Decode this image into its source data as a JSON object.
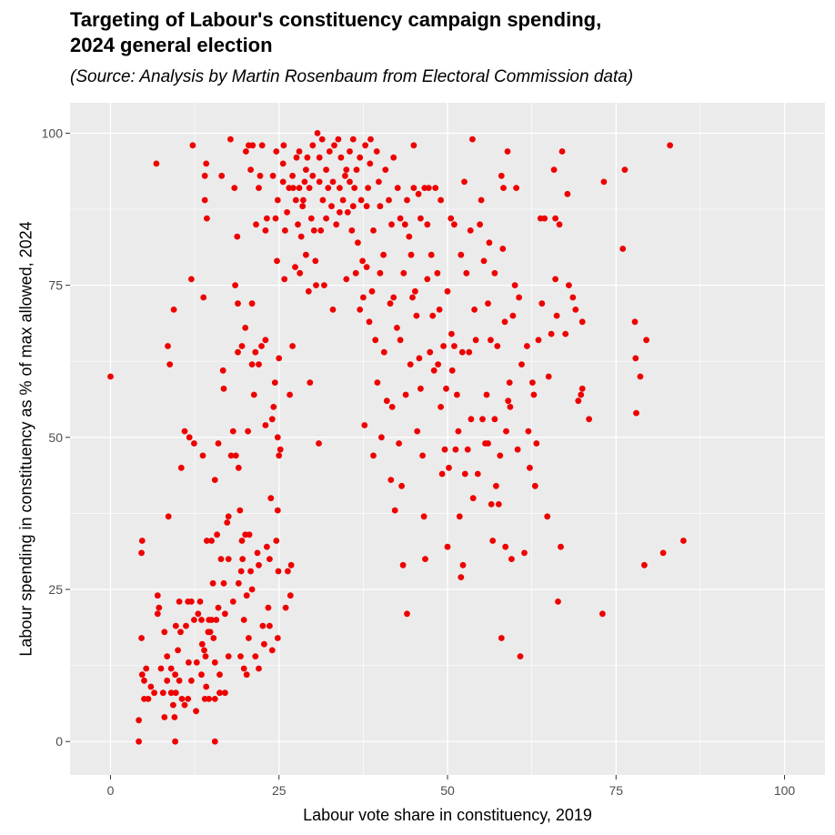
{
  "chart_data": {
    "type": "scatter",
    "title_lines": [
      "Targeting of Labour's constituency campaign spending,",
      "2024 general election"
    ],
    "subtitle": "(Source: Analysis by Martin Rosenbaum from Electoral Commission data)",
    "xlabel": "Labour vote share in constituency, 2019",
    "ylabel": "Labour spending in constituency as % of max allowed, 2024",
    "xlim": [
      -6,
      106
    ],
    "ylim": [
      -5.5,
      105
    ],
    "x_ticks": [
      0,
      25,
      50,
      75,
      100
    ],
    "y_ticks": [
      0,
      25,
      50,
      75,
      100
    ],
    "grid": true,
    "point_color": "#ee0000",
    "panel_color": "#ebebeb",
    "points": [
      [
        0,
        60
      ],
      [
        4.2,
        0
      ],
      [
        4.2,
        3.5
      ],
      [
        4.6,
        17
      ],
      [
        4.6,
        31
      ],
      [
        4.7,
        33
      ],
      [
        4.7,
        11
      ],
      [
        5,
        7
      ],
      [
        5,
        10
      ],
      [
        5.3,
        12
      ],
      [
        5.6,
        7
      ],
      [
        6,
        9
      ],
      [
        6.5,
        8
      ],
      [
        6.8,
        95
      ],
      [
        7,
        24
      ],
      [
        7,
        21
      ],
      [
        7.2,
        22
      ],
      [
        7.5,
        12
      ],
      [
        7.8,
        8
      ],
      [
        8,
        18
      ],
      [
        8,
        4
      ],
      [
        8.4,
        10
      ],
      [
        8.4,
        14
      ],
      [
        8.5,
        65
      ],
      [
        8.6,
        37
      ],
      [
        8.8,
        62
      ],
      [
        9,
        12
      ],
      [
        9,
        8
      ],
      [
        9.3,
        6
      ],
      [
        9.4,
        71
      ],
      [
        9.5,
        4
      ],
      [
        9.6,
        0
      ],
      [
        9.6,
        11
      ],
      [
        9.7,
        19
      ],
      [
        9.7,
        8
      ],
      [
        10,
        15
      ],
      [
        10.2,
        23
      ],
      [
        10.2,
        10
      ],
      [
        10.4,
        18
      ],
      [
        10.5,
        45
      ],
      [
        10.6,
        7
      ],
      [
        11,
        51
      ],
      [
        11,
        6
      ],
      [
        11.2,
        19
      ],
      [
        11.5,
        23
      ],
      [
        11.5,
        7
      ],
      [
        11.6,
        13
      ],
      [
        11.7,
        50
      ],
      [
        12,
        76
      ],
      [
        12,
        23
      ],
      [
        12,
        10
      ],
      [
        12.2,
        98
      ],
      [
        12.4,
        49
      ],
      [
        12.4,
        20
      ],
      [
        12.7,
        5
      ],
      [
        12.8,
        13
      ],
      [
        13,
        21
      ],
      [
        13.3,
        23
      ],
      [
        13.5,
        11
      ],
      [
        13.5,
        20
      ],
      [
        13.6,
        16
      ],
      [
        13.7,
        47
      ],
      [
        13.8,
        73
      ],
      [
        13.9,
        15
      ],
      [
        14,
        93
      ],
      [
        14,
        89
      ],
      [
        14,
        7
      ],
      [
        14.1,
        14
      ],
      [
        14.2,
        95
      ],
      [
        14.2,
        9
      ],
      [
        14.3,
        86
      ],
      [
        14.3,
        33
      ],
      [
        14.5,
        18
      ],
      [
        14.6,
        20
      ],
      [
        14.6,
        7
      ],
      [
        14.8,
        18
      ],
      [
        15,
        20
      ],
      [
        15,
        33
      ],
      [
        15.2,
        26
      ],
      [
        15.3,
        17
      ],
      [
        15.5,
        0
      ],
      [
        15.5,
        43
      ],
      [
        15.5,
        13
      ],
      [
        15.5,
        7
      ],
      [
        15.7,
        20
      ],
      [
        15.8,
        34
      ],
      [
        16,
        49
      ],
      [
        16,
        22
      ],
      [
        16.2,
        11
      ],
      [
        16.2,
        8
      ],
      [
        16.4,
        30
      ],
      [
        16.5,
        93
      ],
      [
        16.7,
        61
      ],
      [
        16.8,
        58
      ],
      [
        16.8,
        26
      ],
      [
        17,
        8
      ],
      [
        17,
        21
      ],
      [
        17.3,
        36
      ],
      [
        17.5,
        37
      ],
      [
        17.5,
        30
      ],
      [
        17.5,
        14
      ],
      [
        17.8,
        99
      ],
      [
        17.9,
        47
      ],
      [
        18.2,
        23
      ],
      [
        18.2,
        51
      ],
      [
        18.4,
        91
      ],
      [
        18.5,
        75
      ],
      [
        18.6,
        47
      ],
      [
        18.8,
        83
      ],
      [
        18.9,
        64
      ],
      [
        18.9,
        72
      ],
      [
        19,
        26
      ],
      [
        19,
        45
      ],
      [
        19.2,
        38
      ],
      [
        19.3,
        14
      ],
      [
        19.4,
        28
      ],
      [
        19.5,
        33
      ],
      [
        19.5,
        65
      ],
      [
        19.6,
        30
      ],
      [
        19.8,
        20
      ],
      [
        19.8,
        12
      ],
      [
        20,
        34
      ],
      [
        20,
        68
      ],
      [
        20.1,
        97
      ],
      [
        20.2,
        24
      ],
      [
        20.2,
        11
      ],
      [
        20.4,
        51
      ],
      [
        20.5,
        98
      ],
      [
        20.5,
        17
      ],
      [
        20.6,
        34
      ],
      [
        20.8,
        94
      ],
      [
        20.8,
        28
      ],
      [
        21,
        72
      ],
      [
        21,
        62
      ],
      [
        21,
        25
      ],
      [
        21.1,
        98
      ],
      [
        21.3,
        57
      ],
      [
        21.5,
        64
      ],
      [
        21.5,
        14
      ],
      [
        21.6,
        85
      ],
      [
        21.8,
        31
      ],
      [
        22,
        62
      ],
      [
        22,
        91
      ],
      [
        22,
        12
      ],
      [
        22,
        29
      ],
      [
        22.2,
        93
      ],
      [
        22.4,
        65
      ],
      [
        22.5,
        98
      ],
      [
        22.6,
        19
      ],
      [
        22.8,
        16
      ],
      [
        23,
        66
      ],
      [
        23,
        84
      ],
      [
        23,
        52
      ],
      [
        23.2,
        32
      ],
      [
        23.2,
        86
      ],
      [
        23.4,
        22
      ],
      [
        23.6,
        30
      ],
      [
        23.6,
        19
      ],
      [
        23.8,
        40
      ],
      [
        24,
        53
      ],
      [
        24,
        15
      ],
      [
        24.1,
        93
      ],
      [
        24.2,
        55
      ],
      [
        24.4,
        59
      ],
      [
        24.5,
        86
      ],
      [
        24.6,
        33
      ],
      [
        24.6,
        97
      ],
      [
        24.7,
        79
      ],
      [
        24.8,
        89
      ],
      [
        24.8,
        50
      ],
      [
        24.8,
        38
      ],
      [
        24.8,
        17
      ],
      [
        24.9,
        28
      ],
      [
        25,
        47
      ],
      [
        25,
        63
      ],
      [
        25.2,
        48
      ],
      [
        25.6,
        95
      ],
      [
        25.6,
        92
      ],
      [
        25.7,
        98
      ],
      [
        25.8,
        76
      ],
      [
        25.9,
        84
      ],
      [
        26,
        22
      ],
      [
        26.2,
        87
      ],
      [
        26.3,
        28
      ],
      [
        26.5,
        91
      ],
      [
        26.6,
        57
      ],
      [
        26.7,
        24
      ],
      [
        26.8,
        29
      ],
      [
        27,
        65
      ],
      [
        27,
        93
      ],
      [
        27.1,
        91
      ],
      [
        27.4,
        78
      ],
      [
        27.5,
        89
      ],
      [
        27.6,
        96
      ],
      [
        27.8,
        85
      ],
      [
        28,
        91
      ],
      [
        28,
        97
      ],
      [
        28.1,
        77
      ],
      [
        28.3,
        83
      ],
      [
        28.5,
        88
      ],
      [
        28.6,
        89
      ],
      [
        28.8,
        92
      ],
      [
        29,
        94
      ],
      [
        29,
        80
      ],
      [
        29.2,
        96
      ],
      [
        29.4,
        74
      ],
      [
        29.5,
        91
      ],
      [
        29.6,
        59
      ],
      [
        29.8,
        86
      ],
      [
        30,
        93
      ],
      [
        30,
        98
      ],
      [
        30.2,
        84
      ],
      [
        30.4,
        79
      ],
      [
        30.5,
        75
      ],
      [
        30.7,
        100
      ],
      [
        30.9,
        49
      ],
      [
        31,
        92
      ],
      [
        31,
        96
      ],
      [
        31.2,
        84
      ],
      [
        31.4,
        99
      ],
      [
        31.5,
        89
      ],
      [
        31.7,
        75
      ],
      [
        32,
        94
      ],
      [
        32,
        86
      ],
      [
        32.3,
        91
      ],
      [
        32.5,
        97
      ],
      [
        32.8,
        88
      ],
      [
        33,
        92
      ],
      [
        33,
        71
      ],
      [
        33.2,
        98
      ],
      [
        33.5,
        85
      ],
      [
        33.8,
        99
      ],
      [
        34,
        91
      ],
      [
        34,
        87
      ],
      [
        34.2,
        96
      ],
      [
        34.5,
        89
      ],
      [
        34.8,
        93
      ],
      [
        35,
        76
      ],
      [
        35,
        94
      ],
      [
        35.2,
        87
      ],
      [
        35.5,
        92
      ],
      [
        35.5,
        97
      ],
      [
        35.8,
        84
      ],
      [
        36,
        88
      ],
      [
        36,
        99
      ],
      [
        36.2,
        91
      ],
      [
        36.4,
        77
      ],
      [
        36.5,
        94
      ],
      [
        36.7,
        82
      ],
      [
        37,
        96
      ],
      [
        37,
        71
      ],
      [
        37.2,
        89
      ],
      [
        37.4,
        79
      ],
      [
        37.5,
        73
      ],
      [
        37.7,
        52
      ],
      [
        37.8,
        98
      ],
      [
        38,
        88
      ],
      [
        38,
        78
      ],
      [
        38.2,
        91
      ],
      [
        38.4,
        69
      ],
      [
        38.5,
        95
      ],
      [
        38.6,
        99
      ],
      [
        38.8,
        74
      ],
      [
        39,
        84
      ],
      [
        39,
        47
      ],
      [
        39.3,
        66
      ],
      [
        39.5,
        97
      ],
      [
        39.6,
        59
      ],
      [
        39.8,
        92
      ],
      [
        40,
        88
      ],
      [
        40,
        77
      ],
      [
        40.2,
        50
      ],
      [
        40.5,
        80
      ],
      [
        40.6,
        64
      ],
      [
        40.8,
        94
      ],
      [
        41,
        56
      ],
      [
        41.3,
        89
      ],
      [
        41.5,
        72
      ],
      [
        41.6,
        43
      ],
      [
        41.7,
        85
      ],
      [
        41.8,
        55
      ],
      [
        42,
        96
      ],
      [
        42,
        73
      ],
      [
        42.2,
        38
      ],
      [
        42.5,
        68
      ],
      [
        42.6,
        91
      ],
      [
        42.8,
        49
      ],
      [
        43,
        86
      ],
      [
        43,
        66
      ],
      [
        43.2,
        42
      ],
      [
        43.4,
        29
      ],
      [
        43.5,
        77
      ],
      [
        43.7,
        85
      ],
      [
        43.8,
        57
      ],
      [
        44,
        89
      ],
      [
        44,
        21
      ],
      [
        44.3,
        83
      ],
      [
        44.5,
        62
      ],
      [
        44.6,
        80
      ],
      [
        44.8,
        73
      ],
      [
        45,
        91
      ],
      [
        45,
        98
      ],
      [
        45.2,
        74
      ],
      [
        45.4,
        70
      ],
      [
        45.5,
        51
      ],
      [
        45.7,
        90
      ],
      [
        45.8,
        63
      ],
      [
        46,
        86
      ],
      [
        46,
        58
      ],
      [
        46.3,
        47
      ],
      [
        46.5,
        37
      ],
      [
        46.6,
        91
      ],
      [
        46.7,
        30
      ],
      [
        47,
        76
      ],
      [
        47,
        85
      ],
      [
        47.2,
        91
      ],
      [
        47.4,
        64
      ],
      [
        47.6,
        80
      ],
      [
        47.8,
        70
      ],
      [
        48,
        61
      ],
      [
        48.2,
        91
      ],
      [
        48.5,
        77
      ],
      [
        48.6,
        62
      ],
      [
        48.8,
        71
      ],
      [
        49,
        55
      ],
      [
        49,
        89
      ],
      [
        49.2,
        44
      ],
      [
        49.4,
        65
      ],
      [
        49.6,
        48
      ],
      [
        49.8,
        58
      ],
      [
        50,
        32
      ],
      [
        50,
        74
      ],
      [
        50.2,
        45
      ],
      [
        50.5,
        86
      ],
      [
        50.6,
        67
      ],
      [
        50.7,
        61
      ],
      [
        51,
        85
      ],
      [
        51,
        65
      ],
      [
        51.2,
        48
      ],
      [
        51.4,
        57
      ],
      [
        51.6,
        51
      ],
      [
        51.8,
        37
      ],
      [
        52,
        27
      ],
      [
        52,
        80
      ],
      [
        52.2,
        64
      ],
      [
        52.3,
        29
      ],
      [
        52.5,
        92
      ],
      [
        52.6,
        44
      ],
      [
        52.8,
        77
      ],
      [
        53,
        48
      ],
      [
        53.2,
        64
      ],
      [
        53.4,
        84
      ],
      [
        53.5,
        53
      ],
      [
        53.7,
        99
      ],
      [
        53.8,
        40
      ],
      [
        54,
        71
      ],
      [
        54.2,
        66
      ],
      [
        54.5,
        44
      ],
      [
        54.8,
        85
      ],
      [
        55,
        89
      ],
      [
        55.2,
        53
      ],
      [
        55.4,
        79
      ],
      [
        55.6,
        49
      ],
      [
        55.8,
        57
      ],
      [
        56,
        49
      ],
      [
        56,
        72
      ],
      [
        56.2,
        82
      ],
      [
        56.4,
        66
      ],
      [
        56.5,
        39
      ],
      [
        56.7,
        33
      ],
      [
        57,
        53
      ],
      [
        57,
        77
      ],
      [
        57.2,
        42
      ],
      [
        57.4,
        65
      ],
      [
        57.6,
        39
      ],
      [
        57.8,
        47
      ],
      [
        58,
        93
      ],
      [
        58,
        17
      ],
      [
        58.2,
        81
      ],
      [
        58.3,
        91
      ],
      [
        58.5,
        69
      ],
      [
        58.6,
        32
      ],
      [
        58.7,
        51
      ],
      [
        58.9,
        97
      ],
      [
        59,
        56
      ],
      [
        59.2,
        59
      ],
      [
        59.3,
        55
      ],
      [
        59.5,
        30
      ],
      [
        59.7,
        70
      ],
      [
        60,
        75
      ],
      [
        60.2,
        91
      ],
      [
        60.4,
        48
      ],
      [
        60.6,
        73
      ],
      [
        60.8,
        14
      ],
      [
        61,
        62
      ],
      [
        61.4,
        31
      ],
      [
        61.8,
        65
      ],
      [
        62,
        51
      ],
      [
        62.2,
        45
      ],
      [
        62.6,
        59
      ],
      [
        62.8,
        57
      ],
      [
        63,
        42
      ],
      [
        63.2,
        49
      ],
      [
        63.5,
        66
      ],
      [
        63.8,
        86
      ],
      [
        64,
        72
      ],
      [
        64.4,
        86
      ],
      [
        64.8,
        37
      ],
      [
        65,
        60
      ],
      [
        65.4,
        67
      ],
      [
        65.8,
        94
      ],
      [
        66,
        86
      ],
      [
        66,
        76
      ],
      [
        66.2,
        70
      ],
      [
        66.4,
        23
      ],
      [
        66.6,
        85
      ],
      [
        66.8,
        32
      ],
      [
        67,
        97
      ],
      [
        67.5,
        67
      ],
      [
        67.8,
        90
      ],
      [
        68,
        75
      ],
      [
        68.6,
        73
      ],
      [
        69,
        71
      ],
      [
        69.4,
        56
      ],
      [
        69.8,
        57
      ],
      [
        70,
        69
      ],
      [
        70,
        58
      ],
      [
        71,
        53
      ],
      [
        73,
        21
      ],
      [
        73.2,
        92
      ],
      [
        76,
        81
      ],
      [
        76.3,
        94
      ],
      [
        77.8,
        69
      ],
      [
        77.9,
        63
      ],
      [
        78,
        54
      ],
      [
        78.6,
        60
      ],
      [
        79.2,
        29
      ],
      [
        79.5,
        66
      ],
      [
        82,
        31
      ],
      [
        83,
        98
      ],
      [
        85,
        33
      ]
    ]
  }
}
